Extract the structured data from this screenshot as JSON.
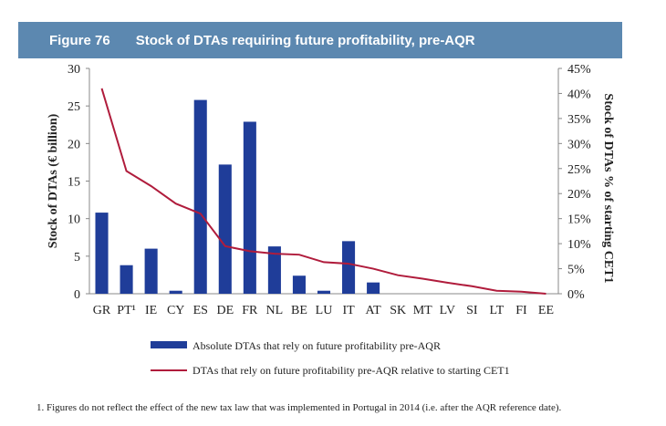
{
  "header": {
    "figure_label": "Figure 76",
    "title": "Stock of DTAs requiring future profitability, pre-AQR"
  },
  "footnote": "1. Figures do not reflect the effect of the new tax law that was implemented in Portugal in 2014 (i.e. after the AQR reference date).",
  "colors": {
    "bar": "#1f3d99",
    "line": "#b01c3c",
    "banner": "#5c88b0"
  },
  "chart_data": {
    "type": "bar",
    "categories": [
      "GR",
      "PT¹",
      "IE",
      "CY",
      "ES",
      "DE",
      "FR",
      "NL",
      "BE",
      "LU",
      "IT",
      "AT",
      "SK",
      "MT",
      "LV",
      "SI",
      "LT",
      "FI",
      "EE"
    ],
    "ylabel": "Stock of DTAs (€ billion)",
    "y2label": "Stock of DTAs % of starting CET1",
    "ylim": [
      0,
      30
    ],
    "y2lim": [
      0,
      45
    ],
    "yticks": [
      "0",
      "5",
      "10",
      "15",
      "20",
      "25",
      "30"
    ],
    "y2ticks": [
      "0%",
      "5%",
      "10%",
      "15%",
      "20%",
      "25%",
      "30%",
      "35%",
      "40%",
      "45%"
    ],
    "series": [
      {
        "name": "Absolute DTAs that rely on future profitability pre-AQR",
        "kind": "bar",
        "values": [
          10.8,
          3.8,
          6.0,
          0.4,
          25.8,
          17.2,
          22.9,
          6.3,
          2.4,
          0.4,
          7.0,
          1.5,
          0,
          0,
          0,
          0,
          0,
          0,
          0
        ]
      },
      {
        "name": "DTAs that rely on future profitability pre-AQR relative to starting CET1",
        "kind": "line",
        "axis": "right",
        "values": [
          41,
          24.5,
          21.5,
          18,
          16,
          9.5,
          8.5,
          8,
          7.8,
          6.3,
          6,
          5,
          3.7,
          3,
          2.2,
          1.5,
          0.6,
          0.4,
          0
        ]
      }
    ],
    "legend_position": "bottom"
  }
}
